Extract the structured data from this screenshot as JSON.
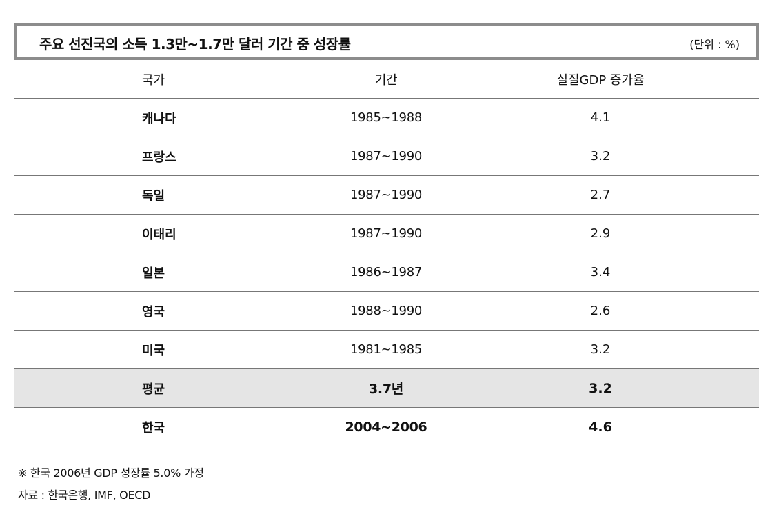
{
  "title": "주요 선진국의 소득 1.3만~1.7만 달러 기간 중 성장률",
  "unit": "(단위 : %)",
  "columns": {
    "country": "국가",
    "period": "기간",
    "growth": "실질GDP 증가율"
  },
  "rows": [
    {
      "country": "캐나다",
      "period": "1985~1988",
      "growth": "4.1"
    },
    {
      "country": "프랑스",
      "period": "1987~1990",
      "growth": "3.2"
    },
    {
      "country": "독일",
      "period": "1987~1990",
      "growth": "2.7"
    },
    {
      "country": "이태리",
      "period": "1987~1990",
      "growth": "2.9"
    },
    {
      "country": "일본",
      "period": "1986~1987",
      "growth": "3.4"
    },
    {
      "country": "영국",
      "period": "1988~1990",
      "growth": "2.6"
    },
    {
      "country": "미국",
      "period": "1981~1985",
      "growth": "3.2"
    }
  ],
  "average": {
    "country": "평균",
    "period": "3.7년",
    "growth": "3.2"
  },
  "korea": {
    "country": "한국",
    "period": "2004~2006",
    "growth": "4.6"
  },
  "footnotes": {
    "note": "※ 한국 2006년 GDP 성장률 5.0% 가정",
    "source": "자료 : 한국은행, IMF, OECD"
  },
  "colors": {
    "title_border": "#8c8c8c",
    "shaded_row": "#e5e5e5",
    "rule": "#777777"
  }
}
